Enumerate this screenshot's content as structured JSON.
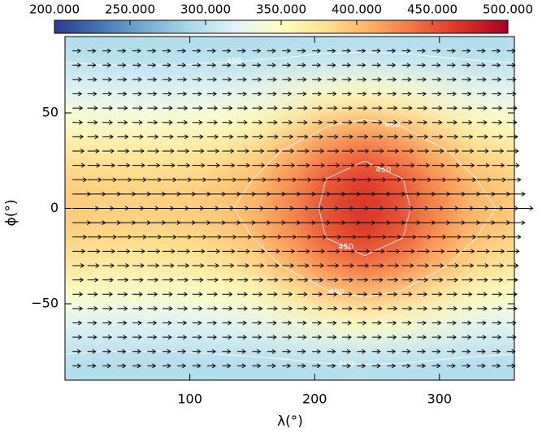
{
  "chart_data": {
    "type": "heatmap",
    "xlabel": "λ(°)",
    "ylabel": "ϕ(°)",
    "xlim": [
      0,
      360
    ],
    "ylim": [
      -90,
      90
    ],
    "xticks": [
      100,
      200,
      300
    ],
    "yticks": [
      {
        "value": -50,
        "label": "−50"
      },
      0,
      50
    ],
    "x": [
      0,
      30,
      60,
      90,
      120,
      150,
      180,
      210,
      240,
      270,
      300,
      330,
      360
    ],
    "y": [
      90,
      75,
      60,
      45,
      30,
      15,
      0,
      -15,
      -30,
      -45,
      -60,
      -75,
      -90
    ],
    "z": [
      [
        290,
        290,
        290,
        290,
        290,
        290,
        290,
        290,
        290,
        290,
        290,
        290,
        290
      ],
      [
        301,
        300,
        300,
        300,
        301,
        302,
        304,
        307,
        308,
        307,
        304,
        302,
        301
      ],
      [
        322,
        320,
        320,
        320,
        322,
        326,
        336,
        346,
        352,
        346,
        336,
        326,
        322
      ],
      [
        349,
        346,
        345,
        346,
        349,
        356,
        374,
        395,
        405,
        395,
        374,
        356,
        349
      ],
      [
        375,
        371,
        370,
        371,
        375,
        384,
        405,
        429,
        442,
        429,
        405,
        384,
        375
      ],
      [
        390,
        386,
        385,
        386,
        390,
        400,
        424,
        451,
        465,
        451,
        424,
        400,
        390
      ],
      [
        395,
        391,
        390,
        391,
        395,
        405,
        429,
        456,
        470,
        456,
        429,
        405,
        395
      ],
      [
        390,
        386,
        385,
        386,
        390,
        400,
        424,
        451,
        465,
        451,
        424,
        400,
        390
      ],
      [
        375,
        371,
        370,
        371,
        375,
        384,
        405,
        429,
        442,
        429,
        405,
        384,
        375
      ],
      [
        349,
        346,
        345,
        346,
        349,
        356,
        374,
        395,
        405,
        395,
        374,
        356,
        349
      ],
      [
        322,
        320,
        320,
        320,
        322,
        326,
        336,
        346,
        352,
        346,
        336,
        326,
        322
      ],
      [
        301,
        300,
        300,
        300,
        301,
        302,
        304,
        307,
        308,
        307,
        304,
        302,
        301
      ],
      [
        290,
        290,
        290,
        290,
        290,
        290,
        290,
        290,
        290,
        290,
        290,
        290,
        290
      ]
    ],
    "zlim": [
      200,
      500
    ],
    "colorbar_ticks": [
      {
        "value": 200,
        "label": "200.000"
      },
      {
        "value": 250,
        "label": "250.000"
      },
      {
        "value": 300,
        "label": "300.000"
      },
      {
        "value": 350,
        "label": "350.000"
      },
      {
        "value": 400,
        "label": "400.000"
      },
      {
        "value": 450,
        "label": "450.000"
      },
      {
        "value": 500,
        "label": "500.000"
      }
    ],
    "colorscale": [
      "#2b3a8f",
      "#4575b4",
      "#74add1",
      "#abd9e9",
      "#e0f3f8",
      "#ffffbf",
      "#fee090",
      "#fdae61",
      "#f46d43",
      "#d73027",
      "#a50026"
    ],
    "contours": {
      "levels": [
        300,
        400,
        450
      ],
      "color": "#ffffff"
    },
    "quiver": {
      "color": "#000000",
      "x": [
        6,
        18,
        30,
        42,
        54,
        66,
        78,
        90,
        102,
        114,
        126,
        138,
        150,
        162,
        174,
        186,
        198,
        210,
        222,
        234,
        246,
        258,
        270,
        282,
        294,
        306,
        318,
        330,
        342,
        354
      ],
      "y": [
        82.5,
        75,
        67.5,
        60,
        52.5,
        45,
        37.5,
        30,
        22.5,
        15,
        7.5,
        0,
        -7.5,
        -15,
        -22.5,
        -30,
        -37.5,
        -45,
        -52.5,
        -60,
        -67.5,
        -75,
        -82.5
      ],
      "u": [
        0.5,
        0.5,
        0.55,
        0.55,
        0.6,
        0.6,
        0.65,
        0.7,
        0.75,
        0.85,
        1.1,
        1.6,
        1.1,
        0.85,
        0.75,
        0.7,
        0.65,
        0.6,
        0.6,
        0.55,
        0.55,
        0.5,
        0.5
      ]
    }
  }
}
